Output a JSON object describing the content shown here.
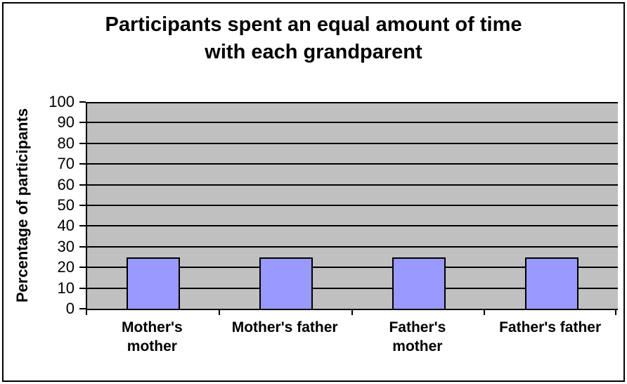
{
  "chart_data": {
    "type": "bar",
    "title": "Participants spent an equal amount of time with each grandparent",
    "title_lines": [
      "Participants spent an equal amount of time",
      "with each grandparent"
    ],
    "xlabel": "",
    "ylabel": "Percentage of participants",
    "categories": [
      "Mother's mother",
      "Mother's father",
      "Father's mother",
      "Father's father"
    ],
    "category_lines": [
      [
        "Mother's",
        "mother"
      ],
      [
        "Mother's father"
      ],
      [
        "Father's",
        "mother"
      ],
      [
        "Father's father"
      ]
    ],
    "values": [
      25,
      25,
      25,
      25
    ],
    "ylim": [
      0,
      100
    ],
    "yticks": [
      0,
      10,
      20,
      30,
      40,
      50,
      60,
      70,
      80,
      90,
      100
    ],
    "grid": "horizontal",
    "legend": "none"
  },
  "colors": {
    "bar_fill": "#9999FF",
    "bar_border": "#000000",
    "plot_background": "#C0C0C0",
    "gridline": "#000000",
    "chart_background": "#FFFFFF",
    "border": "#000000",
    "text": "#000000"
  }
}
